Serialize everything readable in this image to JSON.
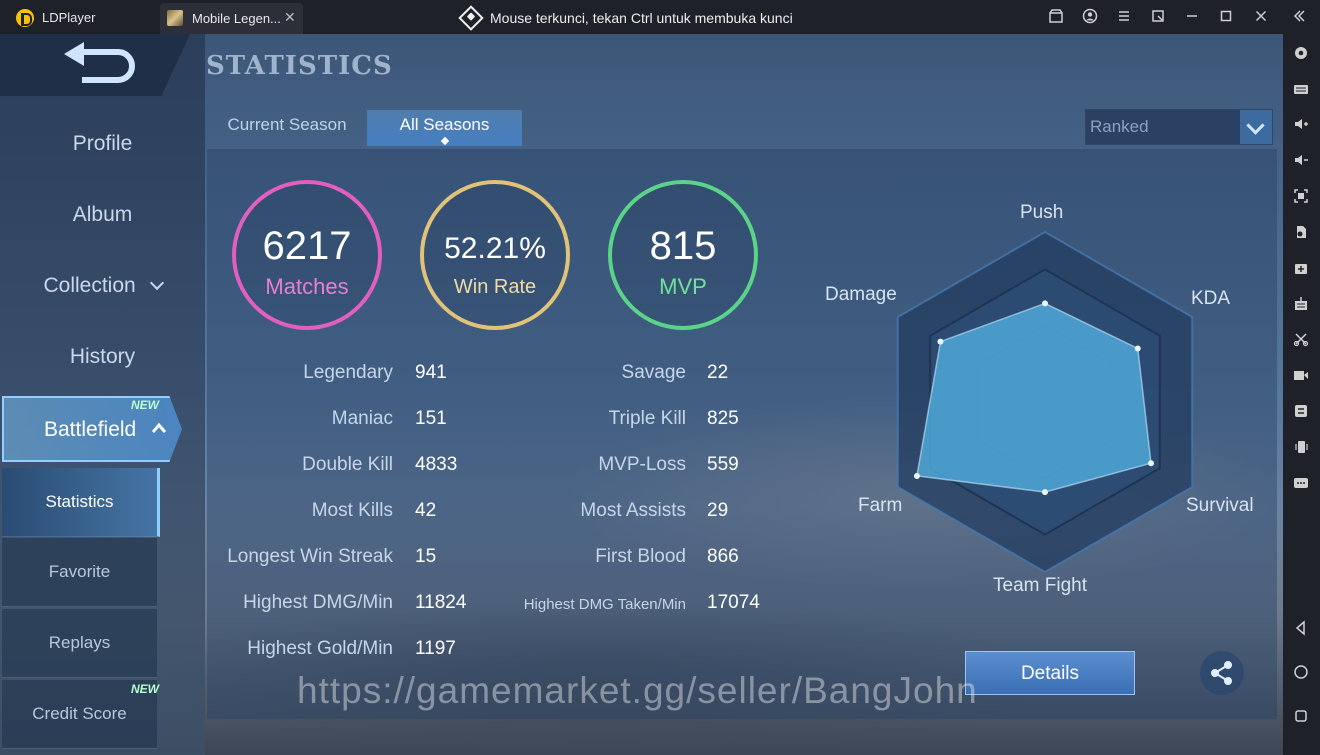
{
  "titlebar": {
    "app_name": "LDPlayer",
    "tab_title": "Mobile Legen...",
    "tab_close": "✕",
    "lock_message": "Mouse terkunci, tekan Ctrl untuk membuka kunci",
    "buttons": [
      "store-icon",
      "account-icon",
      "menu-icon",
      "restore-icon",
      "minimize-icon",
      "maximize-icon",
      "close-icon",
      "collapse-icon"
    ]
  },
  "right_sidebar": {
    "icons": [
      "settings-icon",
      "keyboard-icon",
      "volume-up-icon",
      "volume-down-icon",
      "fullscreen-icon",
      "add-apk-icon",
      "multi-instance-icon",
      "operation-record-icon",
      "scissors-icon",
      "video-record-icon",
      "sync-icon",
      "shake-icon",
      "more-icon",
      "back-icon",
      "home-icon",
      "recents-icon"
    ]
  },
  "left_nav": {
    "items": [
      {
        "label": "Profile"
      },
      {
        "label": "Album"
      },
      {
        "label": "Collection"
      },
      {
        "label": "History"
      }
    ],
    "active": {
      "label": "Battlefield",
      "badge": "NEW"
    },
    "sub_items": [
      {
        "label": "Statistics"
      },
      {
        "label": "Favorite"
      },
      {
        "label": "Replays"
      },
      {
        "label": "Credit Score",
        "badge": "NEW"
      }
    ]
  },
  "page_title": "STATISTICS",
  "season_tabs": [
    {
      "label": "Current Season"
    },
    {
      "label": "All Seasons"
    }
  ],
  "mode_select": {
    "value": "Ranked"
  },
  "summary": {
    "matches": {
      "value": "6217",
      "label": "Matches",
      "color": "#e05fc0"
    },
    "win_rate": {
      "value": "52.21%",
      "label": "Win Rate",
      "color": "#e0c27a"
    },
    "mvp": {
      "value": "815",
      "label": "MVP",
      "color": "#5bd48a"
    }
  },
  "stats_left": [
    {
      "label": "Legendary",
      "value": "941"
    },
    {
      "label": "Maniac",
      "value": "151"
    },
    {
      "label": "Double Kill",
      "value": "4833"
    },
    {
      "label": "Most Kills",
      "value": "42"
    },
    {
      "label": "Longest Win Streak",
      "value": "15"
    },
    {
      "label": "Highest DMG/Min",
      "value": "11824"
    },
    {
      "label": "Highest Gold/Min",
      "value": "1197"
    }
  ],
  "stats_right": [
    {
      "label": "Savage",
      "value": "22"
    },
    {
      "label": "Triple Kill",
      "value": "825"
    },
    {
      "label": "MVP-Loss",
      "value": "559"
    },
    {
      "label": "Most Assists",
      "value": "29"
    },
    {
      "label": "First Blood",
      "value": "866"
    },
    {
      "label": "Highest DMG Taken/Min",
      "value": "17074"
    }
  ],
  "radar": {
    "axes": [
      "Push",
      "KDA",
      "Survival",
      "Team Fight",
      "Farm",
      "Damage"
    ],
    "values": [
      0.58,
      0.63,
      0.72,
      0.53,
      0.87,
      0.71
    ],
    "fill_color": "#4fa8d8"
  },
  "details_label": "Details",
  "share_icon": "share-icon",
  "watermark": "https://gamemarket.gg/seller/BangJohn"
}
